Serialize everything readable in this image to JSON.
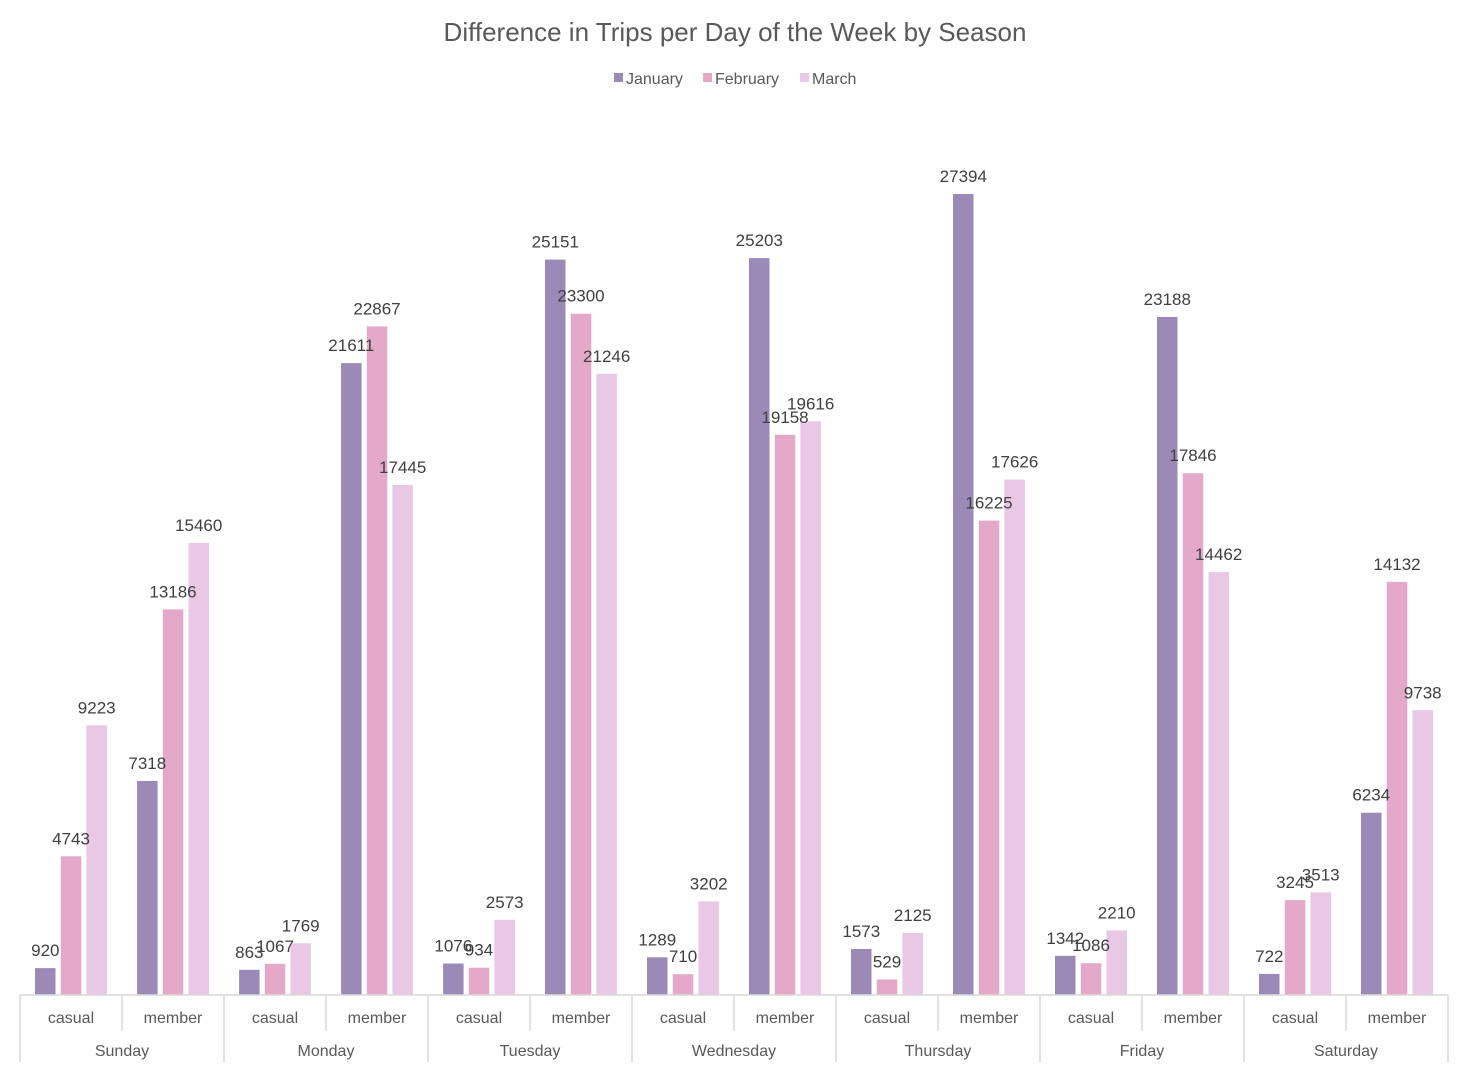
{
  "chart_data": {
    "type": "bar",
    "title": "Difference in Trips per Day of the Week by Season",
    "xlabel": "",
    "ylabel": "",
    "ylim": [
      0,
      30000
    ],
    "grid": false,
    "legend_position": "top",
    "groups": [
      "Sunday",
      "Monday",
      "Tuesday",
      "Wednesday",
      "Thursday",
      "Friday",
      "Saturday"
    ],
    "subcategories": [
      "casual",
      "member"
    ],
    "series": [
      {
        "name": "January",
        "color": "#9b8ab8",
        "values": [
          920,
          7318,
          863,
          21611,
          1076,
          25151,
          1289,
          25203,
          1573,
          27394,
          1342,
          23188,
          722,
          6234
        ]
      },
      {
        "name": "February",
        "color": "#e4a9c9",
        "values": [
          4743,
          13186,
          1067,
          22867,
          934,
          23300,
          710,
          19158,
          529,
          16225,
          1086,
          17846,
          3245,
          14132
        ]
      },
      {
        "name": "March",
        "color": "#e9c8e6",
        "values": [
          9223,
          15460,
          1769,
          17445,
          2573,
          21246,
          3202,
          19616,
          2125,
          17626,
          2210,
          14462,
          3513,
          9738
        ]
      }
    ]
  }
}
